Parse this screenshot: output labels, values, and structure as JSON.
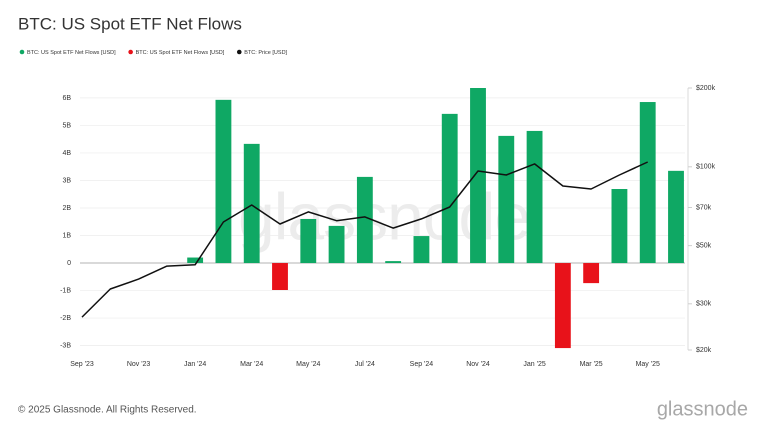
{
  "chart_data": {
    "type": "bar-line",
    "title": "BTC: US Spot ETF Net Flows",
    "categories": [
      "Sep '23",
      null,
      "Nov '23",
      null,
      "Jan '24",
      null,
      "Mar '24",
      null,
      "May '24",
      null,
      "Jul '24",
      null,
      "Sep '24",
      null,
      "Nov '24",
      null,
      "Jan '25",
      null,
      "Mar '25",
      null,
      "May '25",
      null
    ],
    "series": [
      {
        "name": "BTC: US Spot ETF Net Flows [USD]",
        "color": "#0fa864",
        "kind": "bar",
        "values": [
          null,
          null,
          null,
          null,
          0.2,
          5.93,
          4.33,
          null,
          1.6,
          1.35,
          3.13,
          0.07,
          0.98,
          5.42,
          6.36,
          4.62,
          4.8,
          null,
          null,
          2.69,
          5.85,
          3.35
        ]
      },
      {
        "name": "BTC: US Spot ETF Net Flows [USD]",
        "color": "#e8121a",
        "kind": "bar",
        "values": [
          null,
          null,
          null,
          null,
          null,
          null,
          null,
          -0.98,
          null,
          null,
          null,
          null,
          null,
          null,
          null,
          null,
          null,
          -3.09,
          -0.73,
          null,
          null,
          null
        ]
      },
      {
        "name": "BTC: Price [USD]",
        "color": "#111111",
        "kind": "line",
        "axis": "y2",
        "values": [
          26700,
          34200,
          37300,
          41800,
          42300,
          61600,
          71500,
          60500,
          67300,
          62300,
          64400,
          58400,
          63300,
          70300,
          96400,
          93100,
          102600,
          84500,
          82300,
          93100,
          104400,
          null
        ]
      }
    ],
    "ylim": [
      -3.16,
      6.36
    ],
    "yticks": [
      {
        "value": 6,
        "label": "6B"
      },
      {
        "value": 5,
        "label": "5B"
      },
      {
        "value": 4,
        "label": "4B"
      },
      {
        "value": 3,
        "label": "3B"
      },
      {
        "value": 2,
        "label": "2B"
      },
      {
        "value": 1,
        "label": "1B"
      },
      0,
      {
        "value": -1,
        "label": "-1B"
      },
      {
        "value": -2,
        "label": "-2B"
      },
      {
        "value": -3,
        "label": "-3B"
      }
    ],
    "y2lim": [
      20000,
      200000
    ],
    "y2scale": "log",
    "y2ticks": [
      {
        "value": 200000,
        "label": "$200k"
      },
      {
        "value": 100000,
        "label": "$100k"
      },
      {
        "value": 70000,
        "label": "$70k"
      },
      {
        "value": 50000,
        "label": "$50k"
      },
      {
        "value": 30000,
        "label": "$30k"
      },
      {
        "value": 20000,
        "label": "$20k"
      }
    ],
    "grid": true,
    "legend": "top-left"
  },
  "watermark": "glassnode",
  "footer": "© 2025 Glassnode. All Rights Reserved.",
  "logo": "glassnode"
}
